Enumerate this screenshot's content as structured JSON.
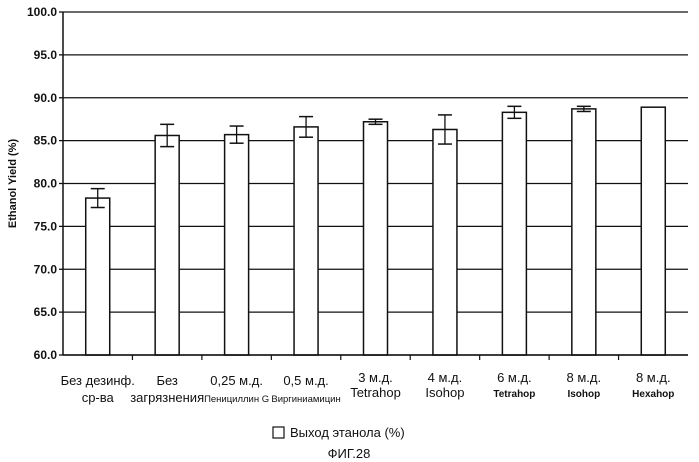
{
  "chart_data": {
    "type": "bar",
    "ylabel": "Ethanol Yield (%)",
    "ylim": [
      60,
      100
    ],
    "yticks": [
      "60.0",
      "65.0",
      "70.0",
      "75.0",
      "80.0",
      "85.0",
      "90.0",
      "95.0",
      "100.0"
    ],
    "grid": true,
    "categories": [
      [
        "Без дезинф.",
        "ср-ва"
      ],
      [
        "Без",
        "загрязнения"
      ],
      [
        "0,25 м.д.",
        "Пенициллин G"
      ],
      [
        "0,5 м.д.",
        "Виргиниамицин"
      ],
      [
        "3 м.д.",
        "Tetrahop"
      ],
      [
        "4 м.д.",
        "Isohop"
      ],
      [
        "6 м.д.",
        "Tetrahop"
      ],
      [
        "8 м.д.",
        "Isohop"
      ],
      [
        "8 м.д.",
        "Hexahop"
      ]
    ],
    "series": [
      {
        "name": "Выход этанола (%)",
        "values": [
          78.3,
          85.6,
          85.7,
          86.6,
          87.2,
          86.3,
          88.3,
          88.7,
          88.9
        ],
        "errors": [
          1.1,
          1.3,
          1.0,
          1.2,
          0.3,
          1.7,
          0.7,
          0.3,
          0
        ]
      }
    ],
    "legend_position": "bottom"
  },
  "figure_caption": "ФИГ.28"
}
